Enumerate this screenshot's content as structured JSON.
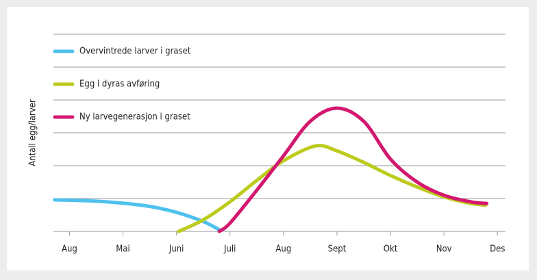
{
  "chart_data": {
    "type": "line",
    "ylabel": "Antall egg/larver",
    "categories": [
      "Aug",
      "Mai",
      "Juni",
      "Juli",
      "Aug",
      "Sept",
      "Okt",
      "Nov",
      "Des"
    ],
    "xlim": [
      -0.3,
      8.15
    ],
    "ylim": [
      0,
      6
    ],
    "yticks": [
      0,
      1,
      2,
      3,
      4,
      5,
      6
    ],
    "grid": true,
    "series": [
      {
        "name": "Overvintrede larver i graset",
        "color": "#4ec1ee",
        "x": [
          -0.28,
          0,
          0.5,
          1,
          1.5,
          2,
          2.5,
          2.8
        ],
        "values": [
          0.96,
          0.95,
          0.92,
          0.86,
          0.76,
          0.58,
          0.3,
          0.05
        ]
      },
      {
        "name": "Egg i dyras avføring",
        "color": "#bccb1c",
        "x": [
          2.04,
          2.5,
          3,
          3.5,
          4,
          4.6,
          5,
          5.5,
          6,
          6.5,
          7,
          7.5,
          7.78
        ],
        "values": [
          0,
          0.35,
          0.9,
          1.55,
          2.15,
          2.6,
          2.45,
          2.1,
          1.7,
          1.35,
          1.05,
          0.85,
          0.8
        ]
      },
      {
        "name": "Ny larvegenerasjon i graset",
        "color": "#d4176f",
        "x": [
          2.8,
          3,
          3.5,
          4,
          4.5,
          5,
          5.5,
          6,
          6.5,
          7,
          7.5,
          7.8
        ],
        "values": [
          0,
          0.25,
          1.25,
          2.3,
          3.35,
          3.75,
          3.35,
          2.2,
          1.5,
          1.1,
          0.9,
          0.85
        ]
      }
    ]
  }
}
